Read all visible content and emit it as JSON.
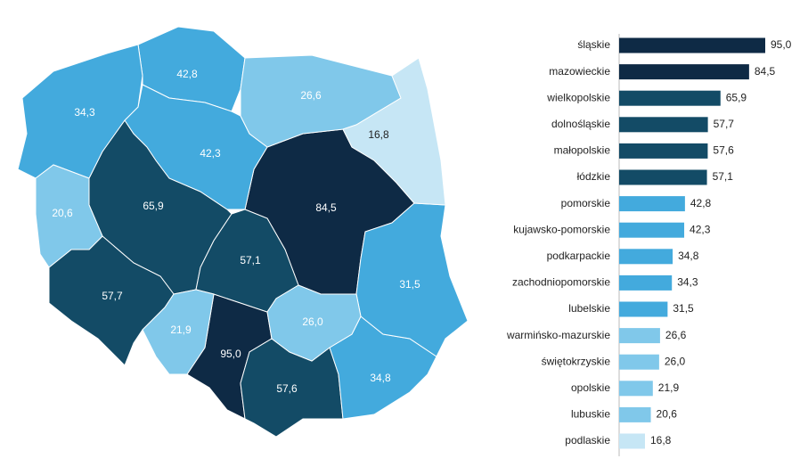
{
  "chart_data": {
    "type": "bar",
    "categories": [
      "śląskie",
      "mazowieckie",
      "wielkopolskie",
      "dolnośląskie",
      "małopolskie",
      "łódzkie",
      "pomorskie",
      "kujawsko-pomorskie",
      "podkarpackie",
      "zachodniopomorskie",
      "lubelskie",
      "warmińsko-mazurskie",
      "świętokrzyskie",
      "opolskie",
      "lubuskie",
      "podlaskie"
    ],
    "values": [
      95.0,
      84.5,
      65.9,
      57.7,
      57.6,
      57.1,
      42.8,
      42.3,
      34.8,
      34.3,
      31.5,
      26.6,
      26.0,
      21.9,
      20.6,
      16.8
    ],
    "value_labels": [
      "95,0",
      "84,5",
      "65,9",
      "57,7",
      "57,6",
      "57,1",
      "42,8",
      "42,3",
      "34,8",
      "34,3",
      "31,5",
      "26,6",
      "26,0",
      "21,9",
      "20,6",
      "16,8"
    ],
    "colors": [
      "#0e2a45",
      "#0e2a45",
      "#134b66",
      "#134b66",
      "#134b66",
      "#134b66",
      "#43aadd",
      "#43aadd",
      "#43aadd",
      "#43aadd",
      "#43aadd",
      "#80c8ea",
      "#80c8ea",
      "#80c8ea",
      "#80c8ea",
      "#c6e6f5"
    ],
    "xlim": [
      0,
      95
    ]
  }
}
